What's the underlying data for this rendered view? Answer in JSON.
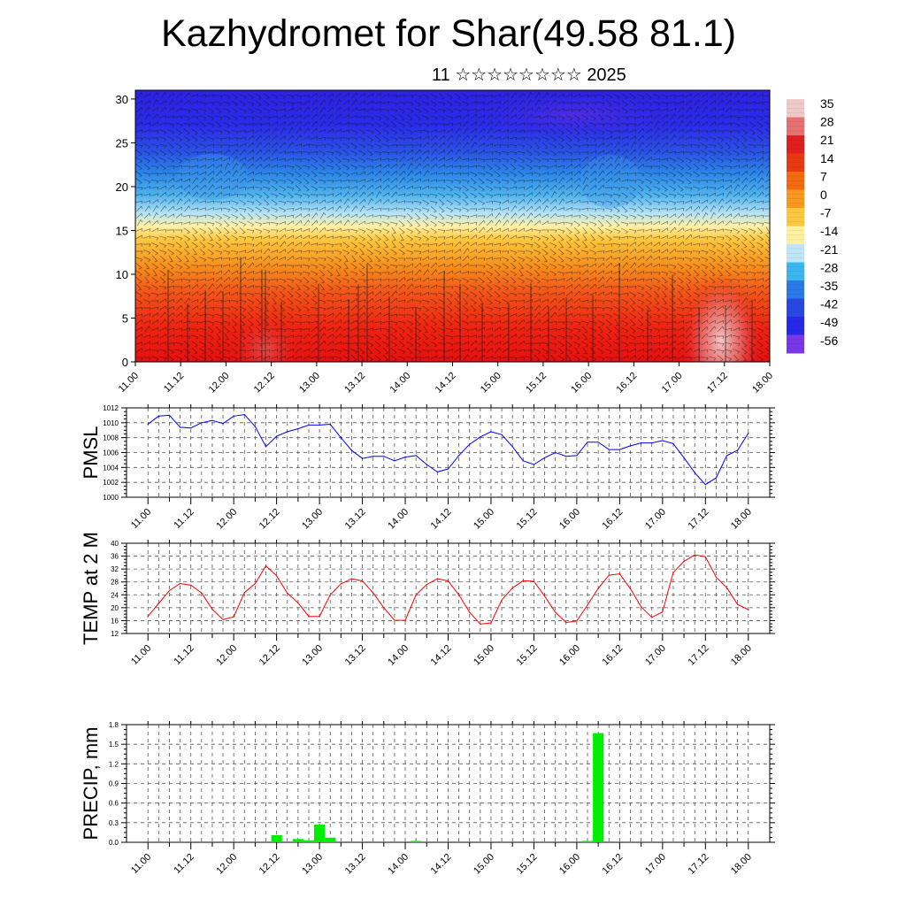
{
  "header": {
    "title": "Kazhydromet for Shar(49.58 81.1)",
    "subtitle": "11 ☆☆☆☆☆☆☆☆ 2025"
  },
  "chart_data": [
    {
      "type": "heatmap",
      "title": "",
      "xlabel": "",
      "ylabel": "",
      "xlim": [
        11.0,
        18.0
      ],
      "ylim": [
        0,
        31
      ],
      "x_tick_labels": [
        "11.00",
        "11.12",
        "12.00",
        "12.12",
        "13.00",
        "13.12",
        "14.00",
        "14.12",
        "15.00",
        "15.12",
        "16.00",
        "16.12",
        "17.00",
        "17.12",
        "18.00"
      ],
      "y_ticks": [
        0,
        5,
        10,
        15,
        20,
        25,
        30
      ],
      "colorbar": {
        "labels": [
          "35",
          "28",
          "21",
          "14",
          "7",
          "0",
          "-7",
          "-14",
          "-21",
          "-28",
          "-35",
          "-42",
          "-49",
          "-56"
        ],
        "colors": [
          "#f0c8c8",
          "#e87070",
          "#e02020",
          "#e83a10",
          "#f46a10",
          "#f89820",
          "#fbc840",
          "#fdf1a0",
          "#bfe6f6",
          "#3cb6ee",
          "#2b7ae8",
          "#2848e4",
          "#2828e8",
          "#7838e8"
        ]
      },
      "profile": [
        {
          "z": 0,
          "color": "#e61010"
        },
        {
          "z": 4,
          "color": "#ee2412"
        },
        {
          "z": 8,
          "color": "#f2561a"
        },
        {
          "z": 11,
          "color": "#f6901e"
        },
        {
          "z": 14,
          "color": "#fbc840"
        },
        {
          "z": 15.5,
          "color": "#fdf1a8"
        },
        {
          "z": 17,
          "color": "#b4e2f6"
        },
        {
          "z": 19,
          "color": "#4fb4ee"
        },
        {
          "z": 21.5,
          "color": "#2c86e8"
        },
        {
          "z": 24,
          "color": "#2a52e4"
        },
        {
          "z": 27,
          "color": "#2a2ce8"
        },
        {
          "z": 31,
          "color": "#2d22e2"
        }
      ]
    },
    {
      "type": "line",
      "ylabel": "PMSL",
      "xlim": [
        10.75,
        18.25
      ],
      "ylim": [
        1000,
        1012
      ],
      "y_ticks": [
        1000,
        1002,
        1004,
        1006,
        1008,
        1010,
        1012
      ],
      "x_tick_labels": [
        "11.00",
        "11.12",
        "12.00",
        "12.12",
        "13.00",
        "13.12",
        "14.00",
        "14.12",
        "15.00",
        "15.12",
        "16.00",
        "16.12",
        "17.00",
        "17.12",
        "18.00"
      ],
      "color": "#0000ff",
      "values": [
        1009.8,
        1010.9,
        1011.0,
        1009.4,
        1009.3,
        1010.0,
        1010.3,
        1009.9,
        1010.9,
        1011.1,
        1009.5,
        1006.8,
        1008.2,
        1008.8,
        1009.2,
        1009.7,
        1009.7,
        1009.8,
        1008.0,
        1006.3,
        1005.2,
        1005.5,
        1005.5,
        1004.9,
        1005.4,
        1005.6,
        1004.4,
        1003.4,
        1003.8,
        1005.6,
        1007.1,
        1008.1,
        1008.8,
        1008.4,
        1006.8,
        1004.9,
        1004.4,
        1005.3,
        1006.0,
        1005.5,
        1005.6,
        1007.4,
        1007.4,
        1006.4,
        1006.4,
        1006.9,
        1007.3,
        1007.3,
        1007.6,
        1007.2,
        1005.3,
        1003.3,
        1001.7,
        1002.6,
        1005.6,
        1006.3,
        1008.6
      ]
    },
    {
      "type": "line",
      "ylabel": "TEMP at 2 M",
      "xlim": [
        10.75,
        18.25
      ],
      "ylim": [
        12,
        40
      ],
      "y_ticks": [
        12,
        16,
        20,
        24,
        28,
        32,
        36,
        40
      ],
      "x_tick_labels": [
        "11.00",
        "11.12",
        "12.00",
        "12.12",
        "13.00",
        "13.12",
        "14.00",
        "14.12",
        "15.00",
        "15.12",
        "16.00",
        "16.12",
        "17.00",
        "17.12",
        "18.00"
      ],
      "color": "#ff0000",
      "values": [
        17.3,
        21.3,
        25.3,
        27.5,
        27.0,
        24.6,
        19.5,
        16.3,
        17.2,
        24.7,
        27.5,
        33.0,
        29.9,
        24.5,
        21.5,
        17.3,
        17.3,
        24.0,
        27.4,
        29.0,
        28.3,
        24.6,
        20.0,
        16.1,
        16.1,
        24.0,
        27.2,
        29.0,
        28.3,
        24.0,
        18.6,
        14.9,
        15.3,
        22.4,
        26.1,
        28.4,
        28.2,
        23.6,
        18.6,
        15.4,
        15.9,
        20.8,
        26.0,
        30.1,
        30.5,
        25.9,
        20.3,
        17.0,
        18.7,
        30.9,
        34.4,
        36.4,
        35.8,
        29.5,
        26.2,
        21.0,
        19.4
      ]
    },
    {
      "type": "bar",
      "ylabel": "PRECIP, mm",
      "xlim": [
        10.75,
        18.25
      ],
      "ylim": [
        0,
        1.8
      ],
      "y_ticks": [
        "0.0",
        "0.3",
        "0.6",
        "0.9",
        "1.2",
        "1.5",
        "1.8"
      ],
      "x_tick_labels": [
        "11.00",
        "11.12",
        "12.00",
        "12.12",
        "13.00",
        "13.12",
        "14.00",
        "14.12",
        "15.00",
        "15.12",
        "16.00",
        "16.12",
        "17.00",
        "17.12",
        "18.00"
      ],
      "color": "#00ee00",
      "values": [
        0,
        0,
        0,
        0,
        0,
        0,
        0,
        0,
        0,
        0,
        0,
        0,
        0.11,
        0,
        0.05,
        0.03,
        0.27,
        0.07,
        0,
        0,
        0,
        0,
        0,
        0,
        0,
        0.02,
        0,
        0,
        0,
        0,
        0,
        0,
        0,
        0,
        0,
        0,
        0,
        0,
        0,
        0,
        0,
        0.02,
        1.67,
        0,
        0,
        0,
        0,
        0,
        0,
        0,
        0,
        0,
        0,
        0,
        0,
        0,
        0
      ]
    }
  ]
}
